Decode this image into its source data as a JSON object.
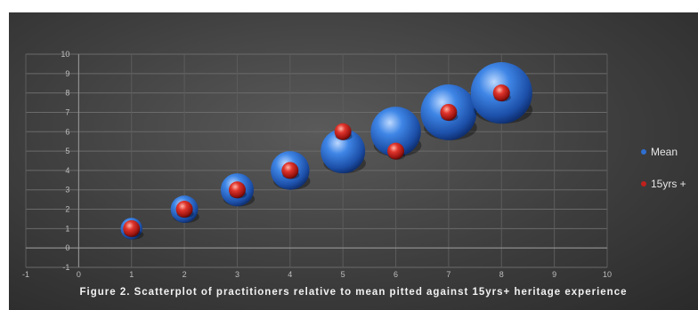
{
  "caption": "Figure 2. Scatterplot of practitioners relative to mean pitted against 15yrs+ heritage experience",
  "colors": {
    "mean": "#2e6fd0",
    "fifteen": "#c0201c"
  },
  "chart_data": {
    "type": "bubble",
    "xlim": [
      -1,
      10
    ],
    "ylim": [
      -1,
      10
    ],
    "x_ticks": [
      -1,
      0,
      1,
      2,
      3,
      4,
      5,
      6,
      7,
      8,
      9,
      10
    ],
    "y_ticks": [
      -1,
      0,
      1,
      2,
      3,
      4,
      5,
      6,
      7,
      8,
      9,
      10
    ],
    "grid": true,
    "legend_position": "right",
    "series": [
      {
        "name": "Mean",
        "x": [
          1,
          2,
          3,
          4,
          5,
          6,
          7,
          8
        ],
        "y": [
          1,
          2,
          3,
          4,
          5,
          6,
          7,
          8
        ],
        "size": [
          1,
          2,
          3,
          4,
          5,
          6,
          7,
          8
        ]
      },
      {
        "name": "15yrs +",
        "x": [
          1,
          2,
          3,
          4,
          5,
          6,
          7,
          8
        ],
        "y": [
          1,
          2,
          3,
          4,
          6,
          5,
          7,
          8
        ],
        "size": [
          1,
          1,
          1,
          1,
          1,
          1,
          1,
          1
        ]
      }
    ]
  }
}
